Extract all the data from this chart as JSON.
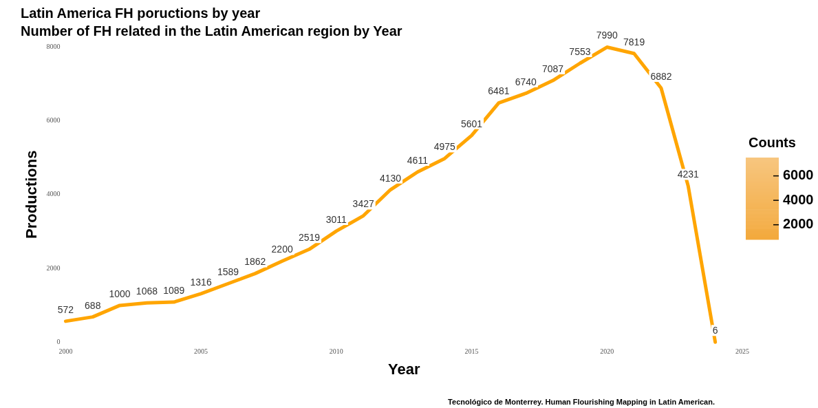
{
  "chart_data": {
    "type": "line",
    "title": "Latin America FH poructions by year",
    "subtitle": "Number of FH related in the Latin American region by Year",
    "xlabel": "Year",
    "ylabel": "Productions",
    "clabel": "Counts",
    "clim": [
      800,
      7500
    ],
    "cticks": [
      2000,
      4000,
      6000
    ],
    "annotations": [
      "Tecnológico de Monterrey. Human Flourishing Mapping in Latin American."
    ],
    "x": [
      2000,
      2001,
      2002,
      2003,
      2004,
      2005,
      2006,
      2007,
      2008,
      2009,
      2010,
      2011,
      2012,
      2013,
      2014,
      2015,
      2016,
      2017,
      2018,
      2019,
      2020,
      2021,
      2022,
      2023,
      2024
    ],
    "series": [
      {
        "color": "#ffa500",
        "values": [
          572,
          688,
          1000,
          1068,
          1089,
          1316,
          1589,
          1862,
          2200,
          2519,
          3011,
          3427,
          4130,
          4611,
          4975,
          5601,
          6481,
          6740,
          7087,
          7553,
          7990,
          7819,
          6882,
          4231,
          6
        ]
      }
    ],
    "xlim": [
      2000,
      2025
    ],
    "xticks": [
      2000,
      2005,
      2010,
      2015,
      2020,
      2025
    ],
    "ylim": [
      0,
      8000
    ],
    "yticks": [
      0,
      2000,
      4000,
      6000,
      8000
    ],
    "grid": false,
    "legend": false,
    "data_labels": true,
    "marker": "none",
    "line_style": "solid"
  }
}
